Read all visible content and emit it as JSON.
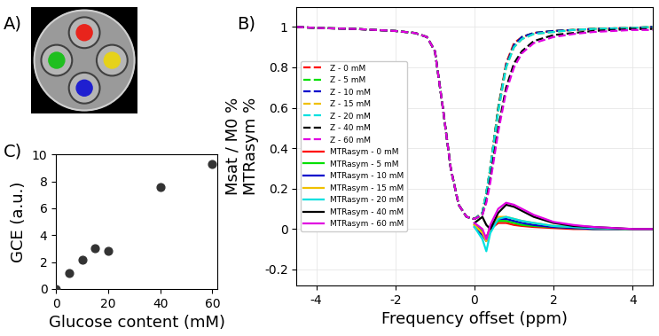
{
  "chart_data": [
    {
      "type": "image",
      "title": "A)",
      "colors": [
        "#e8241c",
        "#1fbf1f",
        "#e6d21a",
        "#1f1fd0"
      ]
    },
    {
      "type": "line",
      "title": "B)",
      "xlabel": "Frequency offset (ppm)",
      "ylabel": [
        "Msat / M0 %",
        "MTRasym %"
      ],
      "x": [
        -4.5,
        -4,
        -3,
        -2,
        -1.5,
        -1.2,
        -1,
        -0.8,
        -0.6,
        -0.4,
        -0.2,
        0,
        0.2,
        0.3,
        0.4,
        0.6,
        0.8,
        1,
        1.2,
        1.5,
        2,
        2.5,
        3,
        4,
        4.5
      ],
      "xlim": [
        -4.5,
        4.5
      ],
      "xticks": [
        -4,
        -2,
        0,
        2,
        4
      ],
      "ylim": [
        -0.28,
        1.1
      ],
      "yticks": [
        -0.2,
        0,
        0.2,
        0.4,
        0.6,
        0.8,
        1
      ],
      "grid": true,
      "legend": "center left",
      "series": [
        {
          "name": "Z - 0 mM",
          "color": "#ff0000",
          "line_style": "dashed",
          "values": [
            1,
            0.995,
            0.99,
            0.98,
            0.97,
            0.95,
            0.88,
            0.6,
            0.3,
            0.12,
            0.06,
            0.05,
            0.08,
            0.18,
            0.3,
            0.6,
            0.82,
            0.92,
            0.95,
            0.97,
            0.98,
            0.985,
            0.99,
            0.995,
            1
          ]
        },
        {
          "name": "Z - 5 mM",
          "color": "#00e000",
          "line_style": "dashed",
          "values": [
            1,
            0.995,
            0.99,
            0.98,
            0.97,
            0.95,
            0.88,
            0.6,
            0.3,
            0.12,
            0.06,
            0.05,
            0.08,
            0.18,
            0.3,
            0.6,
            0.81,
            0.91,
            0.95,
            0.97,
            0.98,
            0.985,
            0.99,
            0.995,
            1
          ]
        },
        {
          "name": "Z - 10 mM",
          "color": "#0000cc",
          "line_style": "dashed",
          "values": [
            1,
            0.995,
            0.99,
            0.98,
            0.97,
            0.95,
            0.88,
            0.6,
            0.3,
            0.12,
            0.06,
            0.05,
            0.08,
            0.18,
            0.3,
            0.59,
            0.81,
            0.91,
            0.95,
            0.97,
            0.98,
            0.985,
            0.99,
            0.995,
            1
          ]
        },
        {
          "name": "Z - 15 mM",
          "color": "#f0c000",
          "line_style": "dashed",
          "values": [
            1,
            0.995,
            0.99,
            0.98,
            0.97,
            0.95,
            0.88,
            0.6,
            0.3,
            0.12,
            0.06,
            0.05,
            0.08,
            0.18,
            0.3,
            0.58,
            0.8,
            0.9,
            0.94,
            0.965,
            0.975,
            0.985,
            0.99,
            0.995,
            1
          ]
        },
        {
          "name": "Z - 20 mM",
          "color": "#00e0e0",
          "line_style": "dashed",
          "values": [
            1,
            0.995,
            0.99,
            0.98,
            0.97,
            0.95,
            0.88,
            0.6,
            0.3,
            0.12,
            0.06,
            0.05,
            0.08,
            0.18,
            0.3,
            0.58,
            0.8,
            0.9,
            0.94,
            0.965,
            0.975,
            0.985,
            0.99,
            0.995,
            1
          ]
        },
        {
          "name": "Z - 40 mM",
          "color": "#000000",
          "line_style": "dashed",
          "values": [
            1,
            0.995,
            0.99,
            0.98,
            0.97,
            0.95,
            0.88,
            0.6,
            0.3,
            0.12,
            0.06,
            0.05,
            0.07,
            0.14,
            0.25,
            0.5,
            0.7,
            0.82,
            0.88,
            0.93,
            0.96,
            0.97,
            0.98,
            0.99,
            0.99
          ]
        },
        {
          "name": "Z - 60 mM",
          "color": "#e000e0",
          "line_style": "dashed",
          "values": [
            1,
            0.995,
            0.99,
            0.98,
            0.97,
            0.95,
            0.88,
            0.6,
            0.3,
            0.12,
            0.06,
            0.05,
            0.07,
            0.13,
            0.23,
            0.48,
            0.68,
            0.8,
            0.87,
            0.92,
            0.95,
            0.965,
            0.975,
            0.985,
            0.985
          ]
        },
        {
          "name": "MTRasym - 0 mM",
          "color": "#ff0000",
          "line_style": "solid",
          "values": [
            null,
            null,
            null,
            null,
            null,
            null,
            null,
            null,
            null,
            null,
            null,
            0.02,
            -0.02,
            -0.04,
            0.0,
            0.03,
            0.03,
            0.02,
            0.015,
            0.01,
            0.005,
            0.0,
            0.0,
            0.0,
            0.0
          ]
        },
        {
          "name": "MTRasym - 5 mM",
          "color": "#00e000",
          "line_style": "solid",
          "values": [
            null,
            null,
            null,
            null,
            null,
            null,
            null,
            null,
            null,
            null,
            null,
            0.02,
            -0.01,
            -0.05,
            0.01,
            0.04,
            0.04,
            0.03,
            0.02,
            0.015,
            0.01,
            0.005,
            0.0,
            0.0,
            0.0
          ]
        },
        {
          "name": "MTRasym - 10 mM",
          "color": "#0000cc",
          "line_style": "solid",
          "values": [
            null,
            null,
            null,
            null,
            null,
            null,
            null,
            null,
            null,
            null,
            null,
            0.01,
            -0.03,
            -0.06,
            0.0,
            0.05,
            0.05,
            0.04,
            0.03,
            0.02,
            0.01,
            0.005,
            0.0,
            0.0,
            0.0
          ]
        },
        {
          "name": "MTRasym - 15 mM",
          "color": "#f0c000",
          "line_style": "solid",
          "values": [
            null,
            null,
            null,
            null,
            null,
            null,
            null,
            null,
            null,
            null,
            null,
            0.02,
            -0.02,
            -0.06,
            0.01,
            0.06,
            0.06,
            0.05,
            0.04,
            0.03,
            0.015,
            0.01,
            0.005,
            0.0,
            0.0
          ]
        },
        {
          "name": "MTRasym - 20 mM",
          "color": "#00e0e0",
          "line_style": "solid",
          "values": [
            null,
            null,
            null,
            null,
            null,
            null,
            null,
            null,
            null,
            null,
            null,
            0.01,
            -0.05,
            -0.11,
            -0.02,
            0.05,
            0.06,
            0.05,
            0.04,
            0.03,
            0.015,
            0.01,
            0.005,
            0.0,
            0.0
          ]
        },
        {
          "name": "MTRasym - 40 mM",
          "color": "#000000",
          "line_style": "solid",
          "values": [
            null,
            null,
            null,
            null,
            null,
            null,
            null,
            null,
            null,
            null,
            null,
            0.03,
            0.06,
            0.02,
            0.0,
            0.08,
            0.12,
            0.11,
            0.09,
            0.06,
            0.03,
            0.015,
            0.01,
            0.0,
            0.0
          ]
        },
        {
          "name": "MTRasym - 60 mM",
          "color": "#e000e0",
          "line_style": "solid",
          "values": [
            null,
            null,
            null,
            null,
            null,
            null,
            null,
            null,
            null,
            null,
            null,
            0.03,
            0.0,
            -0.05,
            0.02,
            0.1,
            0.13,
            0.12,
            0.1,
            0.07,
            0.035,
            0.02,
            0.01,
            0.0,
            0.0
          ]
        }
      ]
    },
    {
      "type": "scatter",
      "title": "C)",
      "xlabel": "Glucose content (mM)",
      "ylabel": "GCE (a.u.)",
      "x": [
        0,
        5,
        10,
        15,
        20,
        40,
        60
      ],
      "values": [
        0,
        1.2,
        2.2,
        3.0,
        2.8,
        7.6,
        9.3
      ],
      "color": "#333333",
      "xlim": [
        0,
        62
      ],
      "xticks": [
        0,
        20,
        40,
        60
      ],
      "ylim": [
        0,
        10
      ],
      "yticks": [
        0,
        2,
        4,
        6,
        8,
        10
      ]
    }
  ]
}
